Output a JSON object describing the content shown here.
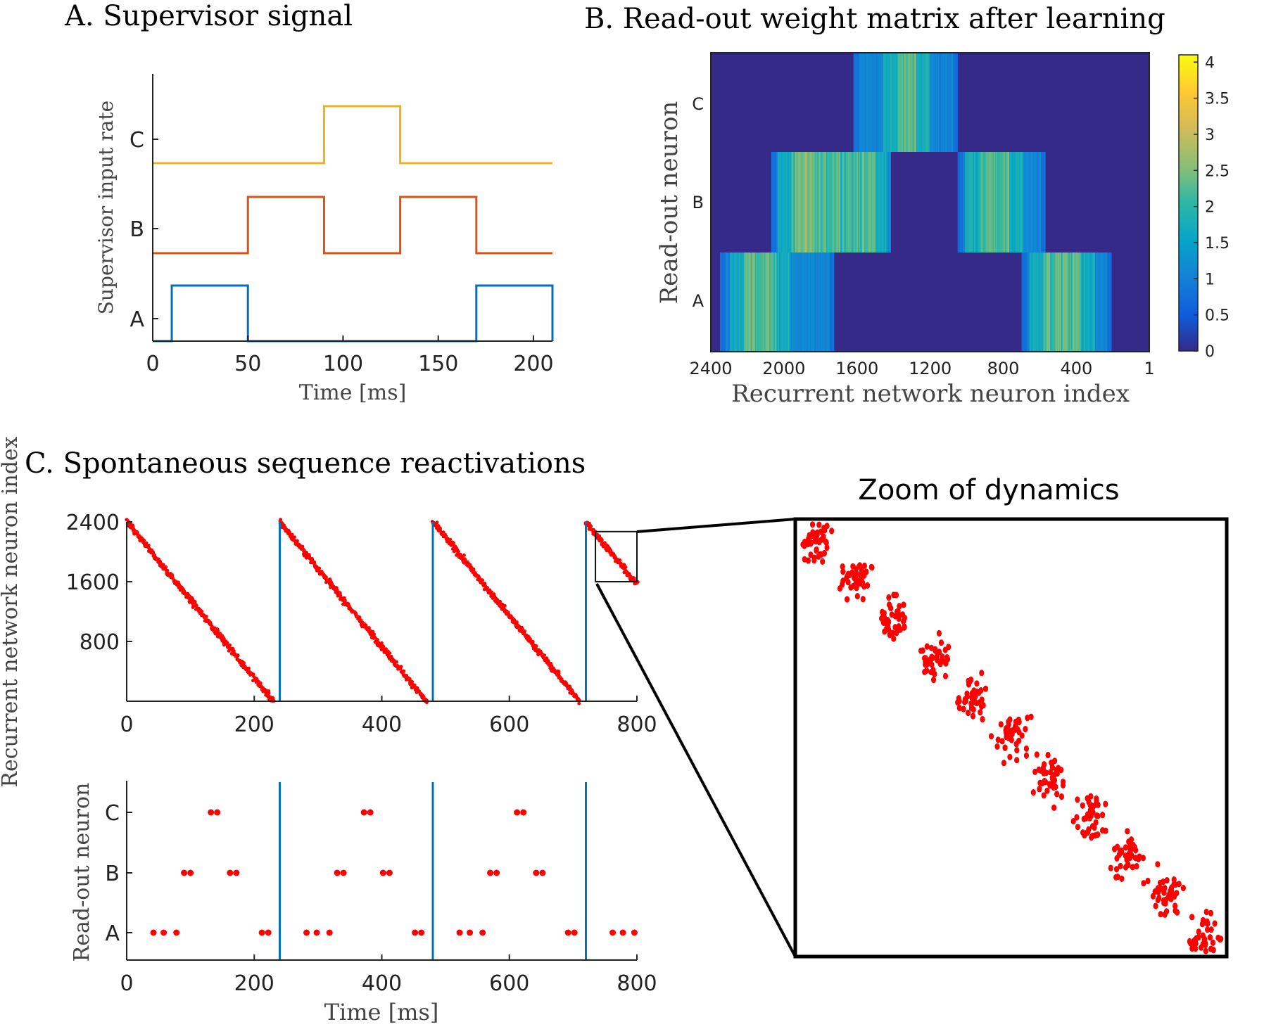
{
  "panels": {
    "a_title": "A. Supervisor signal",
    "b_title": "B. Read-out weight matrix after learning",
    "c_title": "C. Spontaneous sequence reactivations",
    "zoom_title": "Zoom of dynamics"
  },
  "colors": {
    "signal_a": "#0072BD",
    "signal_b": "#D95319",
    "signal_c": "#EDB120",
    "spike": "#ff0000",
    "marker": "#0072BD",
    "heat_low": "#352a87",
    "heat_high": "#f9fb0e"
  },
  "chart_data": [
    {
      "type": "line",
      "title": "A. Supervisor signal",
      "xlabel": "Time [ms]",
      "ylabel": "Supervisor input rate",
      "xlim": [
        0,
        210
      ],
      "x_ticks": [
        0,
        50,
        100,
        150,
        200
      ],
      "y_categories": [
        "A",
        "B",
        "C"
      ],
      "series": [
        {
          "name": "A",
          "segments_high": [
            [
              10,
              50
            ],
            [
              170,
              210
            ]
          ]
        },
        {
          "name": "B",
          "segments_high": [
            [
              50,
              90
            ],
            [
              130,
              170
            ]
          ]
        },
        {
          "name": "C",
          "segments_high": [
            [
              90,
              130
            ]
          ]
        }
      ]
    },
    {
      "type": "heatmap",
      "title": "B. Read-out weight matrix after learning",
      "xlabel": "Recurrent network neuron index",
      "ylabel": "Read-out neuron",
      "x_ticks": [
        "2400",
        "2000",
        "1600",
        "1200",
        "800",
        "400",
        "1"
      ],
      "y_categories": [
        "A",
        "B",
        "C"
      ],
      "colorbar": {
        "min": 0,
        "max": 4.1,
        "ticks": [
          "0",
          "0.5",
          "1",
          "1.5",
          "2",
          "2.5",
          "3",
          "3.5",
          "4"
        ]
      },
      "rows": [
        {
          "name": "C",
          "bands": [
            [
              1620,
              1050
            ]
          ],
          "peak": [
            1380,
            1280
          ]
        },
        {
          "name": "B",
          "bands": [
            [
              2070,
              1420
            ],
            [
              1050,
              570
            ]
          ],
          "peak": [
            1960,
            1500,
            930,
            770
          ]
        },
        {
          "name": "A",
          "bands": [
            [
              2350,
              1730
            ],
            [
              700,
              210
            ]
          ],
          "peak": [
            2220,
            2050,
            580,
            380
          ]
        }
      ]
    },
    {
      "type": "scatter",
      "title": "C. Spontaneous sequence reactivations",
      "ylabel": "Recurrent network neuron index",
      "xlim": [
        0,
        800
      ],
      "ylim": [
        1,
        2400
      ],
      "x_ticks": [
        "0",
        "200",
        "400",
        "600",
        "800"
      ],
      "y_ticks": [
        "2400",
        "1600",
        "800"
      ],
      "sequence_starts_ms": [
        0,
        240,
        480,
        720
      ],
      "sequence_duration_ms": 230,
      "reset_lines_ms": [
        240,
        480,
        720
      ],
      "zoom_box": {
        "x": [
          735,
          800
        ],
        "y": [
          1600,
          2270
        ]
      }
    },
    {
      "type": "scatter",
      "xlabel": "Time [ms]",
      "ylabel": "Read-out neuron",
      "xlim": [
        0,
        800
      ],
      "x_ticks": [
        "0",
        "200",
        "400",
        "600",
        "800"
      ],
      "y_categories": [
        "A",
        "B",
        "C"
      ],
      "spikes": {
        "A": [
          42,
          58,
          78,
          212,
          222,
          282,
          298,
          318,
          452,
          462,
          522,
          538,
          558,
          692,
          702,
          762,
          778,
          796
        ],
        "B": [
          90,
          100,
          162,
          172,
          330,
          340,
          402,
          412,
          570,
          580,
          642,
          652
        ],
        "C": [
          132,
          142,
          372,
          382,
          612,
          622
        ]
      },
      "reset_lines_ms": [
        240,
        480,
        720
      ]
    },
    {
      "type": "scatter",
      "title": "Zoom of dynamics",
      "xlim": [
        735,
        800
      ],
      "ylim": [
        1600,
        2270
      ],
      "description_points": "zoomed raster of sequence spikes"
    }
  ]
}
